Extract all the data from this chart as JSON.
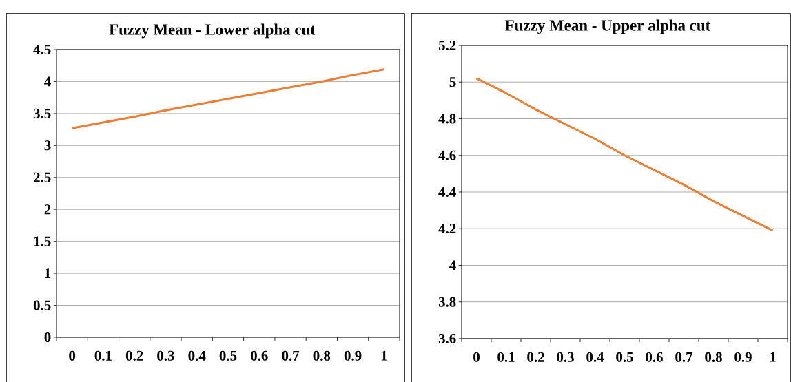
{
  "chart_data": [
    {
      "type": "line",
      "title": "Fuzzy Mean - Lower alpha cut",
      "categories": [
        "0",
        "0.1",
        "0.2",
        "0.3",
        "0.4",
        "0.5",
        "0.6",
        "0.7",
        "0.8",
        "0.9",
        "1"
      ],
      "series": [
        {
          "color": "#ed7d31",
          "values": [
            3.27,
            3.36,
            3.45,
            3.55,
            3.64,
            3.73,
            3.82,
            3.91,
            4.0,
            4.1,
            4.19
          ]
        }
      ],
      "ylim": [
        0,
        4.5
      ],
      "yticks": [
        0,
        0.5,
        1,
        1.5,
        2,
        2.5,
        3,
        3.5,
        4,
        4.5
      ],
      "grid": "y",
      "marker": "none"
    },
    {
      "type": "line",
      "title": "Fuzzy Mean  - Upper alpha cut",
      "categories": [
        "0",
        "0.1",
        "0.2",
        "0.3",
        "0.4",
        "0.5",
        "0.6",
        "0.7",
        "0.8",
        "0.9",
        "1"
      ],
      "series": [
        {
          "color": "#ed7d31",
          "values": [
            5.02,
            4.94,
            4.85,
            4.77,
            4.69,
            4.6,
            4.52,
            4.44,
            4.35,
            4.27,
            4.19
          ]
        }
      ],
      "ylim": [
        3.6,
        5.2
      ],
      "yticks": [
        3.6,
        3.8,
        4,
        4.2,
        4.4,
        4.6,
        4.8,
        5,
        5.2
      ],
      "grid": "y",
      "marker": "none"
    }
  ]
}
